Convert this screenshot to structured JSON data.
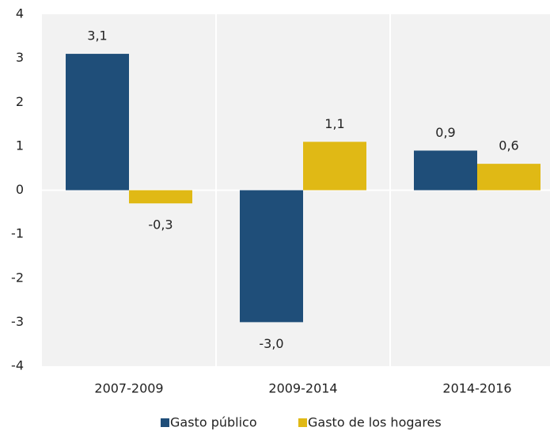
{
  "chart_data": {
    "type": "bar",
    "categories": [
      "2007-2009",
      "2009-2014",
      "2014-2016"
    ],
    "series": [
      {
        "name": "Gasto público",
        "color": "#1f4e79",
        "values": [
          3.1,
          -3.0,
          0.9
        ],
        "value_labels": [
          "3,1",
          "-3,0",
          "0,9"
        ]
      },
      {
        "name": "Gasto de los hogares",
        "color": "#e0b915",
        "values": [
          -0.3,
          1.1,
          0.6
        ],
        "value_labels": [
          "-0,3",
          "1,1",
          "0,6"
        ]
      }
    ],
    "ylim": [
      -4,
      4
    ],
    "yticks": [
      -4,
      -3,
      -2,
      -1,
      0,
      1,
      2,
      3,
      4
    ],
    "legend": "bottom"
  }
}
